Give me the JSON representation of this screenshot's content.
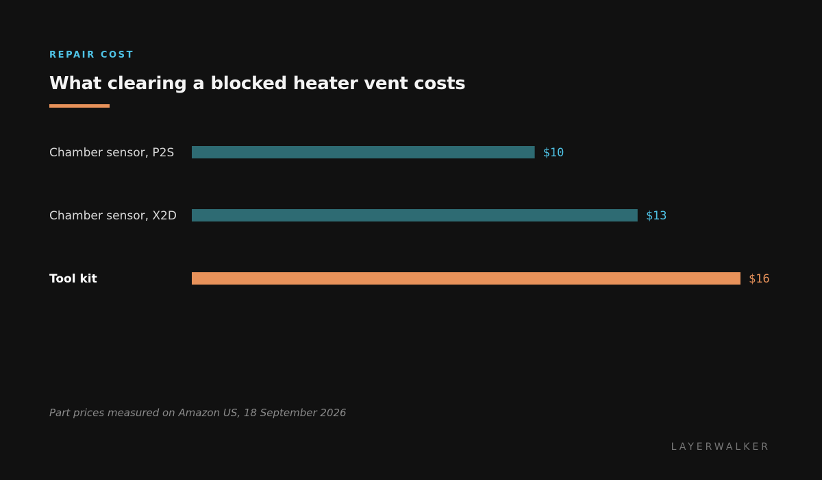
{
  "header": {
    "kicker": "REPAIR COST",
    "title": "What clearing a blocked heater vent costs"
  },
  "footer": {
    "note": "Part prices measured on Amazon US, 18 September 2026",
    "brand": "LAYERWALKER"
  },
  "colors": {
    "bar_default": "#2e6b73",
    "bar_highlight": "#e8925a",
    "value_default": "#4fc3e6",
    "value_highlight": "#e8925a",
    "accent": "#e8925a"
  },
  "chart_data": {
    "type": "bar",
    "orientation": "horizontal",
    "title": "What clearing a blocked heater vent costs",
    "categories": [
      "Chamber sensor, P2S",
      "Chamber sensor, X2D",
      "Tool kit"
    ],
    "values": [
      10,
      13,
      16
    ],
    "value_labels": [
      "$10",
      "$13",
      "$16"
    ],
    "highlight": [
      false,
      false,
      true
    ],
    "xlim": [
      0,
      16
    ],
    "grid": false,
    "legend": "none"
  }
}
